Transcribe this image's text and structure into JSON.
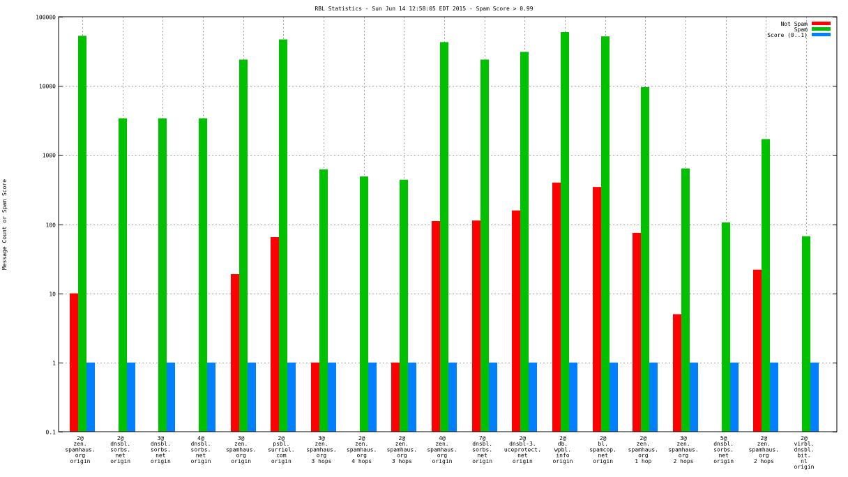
{
  "chart_data": {
    "type": "bar",
    "title": "RBL Statistics - Sun Jun 14 12:58:05 EDT 2015 - Spam Score > 0.99",
    "xlabel": "",
    "ylabel": "Message Count or Spam Score",
    "yscale": "log",
    "ylim": [
      0.1,
      100000
    ],
    "yticks": [
      "0.1",
      "1",
      "10",
      "100",
      "1000",
      "10000",
      "100000"
    ],
    "grid": true,
    "legend_position": "top-right",
    "categories": [
      [
        "2@",
        "zen.",
        "spamhaus.",
        "org",
        "origin"
      ],
      [
        "2@",
        "dnsbl.",
        "sorbs.",
        "net",
        "origin"
      ],
      [
        "3@",
        "dnsbl.",
        "sorbs.",
        "net",
        "origin"
      ],
      [
        "4@",
        "dnsbl.",
        "sorbs.",
        "net",
        "origin"
      ],
      [
        "3@",
        "zen.",
        "spamhaus.",
        "org",
        "origin"
      ],
      [
        "2@",
        "psbl.",
        "surriel.",
        "com",
        "origin"
      ],
      [
        "3@",
        "zen.",
        "spamhaus.",
        "org",
        "3 hops"
      ],
      [
        "2@",
        "zen.",
        "spamhaus.",
        "org",
        "4 hops"
      ],
      [
        "2@",
        "zen.",
        "spamhaus.",
        "org",
        "3 hops"
      ],
      [
        "4@",
        "zen.",
        "spamhaus.",
        "org",
        "origin"
      ],
      [
        "7@",
        "dnsbl.",
        "sorbs.",
        "net",
        "origin"
      ],
      [
        "2@",
        "dnsbl-3.",
        "uceprotect.",
        "net",
        "origin"
      ],
      [
        "2@",
        "db.",
        "wpbl.",
        "info",
        "origin"
      ],
      [
        "2@",
        "bl.",
        "spamcop.",
        "net",
        "origin"
      ],
      [
        "2@",
        "zen.",
        "spamhaus.",
        "org",
        "1 hop"
      ],
      [
        "3@",
        "zen.",
        "spamhaus.",
        "org",
        "2 hops"
      ],
      [
        "5@",
        "dnsbl.",
        "sorbs.",
        "net",
        "origin"
      ],
      [
        "2@",
        "zen.",
        "spamhaus.",
        "org",
        "2 hops"
      ],
      [
        "2@",
        "virbl.",
        "dnsbl.",
        "bit.",
        "nl",
        "origin"
      ]
    ],
    "series": [
      {
        "name": "Not Spam",
        "color": "#ff0000",
        "values": [
          10,
          null,
          null,
          null,
          19,
          65,
          1,
          null,
          1,
          111,
          113,
          158,
          400,
          345,
          75,
          5,
          null,
          22,
          null
        ]
      },
      {
        "name": "Spam",
        "color": "#00c000",
        "values": [
          53000,
          3400,
          3400,
          3400,
          24000,
          47000,
          620,
          490,
          440,
          43000,
          24000,
          31000,
          60000,
          52000,
          9600,
          640,
          106,
          1700,
          67
        ]
      },
      {
        "name": "Score (0..1)",
        "color": "#0080ff",
        "values": [
          1,
          1,
          1,
          1,
          1,
          1,
          1,
          1,
          1,
          1,
          1,
          1,
          1,
          1,
          1,
          1,
          1,
          1,
          1
        ]
      }
    ]
  }
}
